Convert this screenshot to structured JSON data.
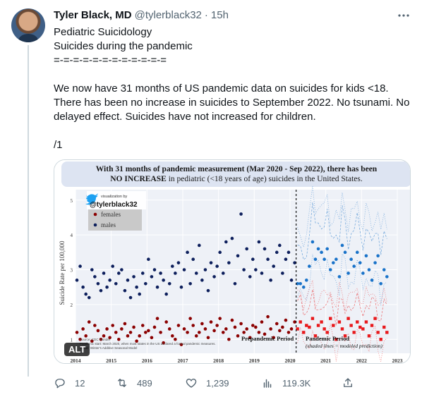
{
  "tweet": {
    "author_name": "Tyler Black, MD",
    "handle": "@tylerblack32",
    "separator": "·",
    "time": "15h",
    "more_icon": "ellipsis-icon",
    "lines": [
      "Pediatric Suicidology",
      "Suicides during the pandemic",
      "=-=-=-=-=-=-=-=-=-=-=-=",
      "",
      "We now have 31 months of US pandemic data on suicides for kids <18. There has been no increase in suicides to September 2022. No tsunami. No delayed effect. Suicides have not increased for children.",
      "",
      "/1"
    ]
  },
  "media": {
    "alt_badge": "ALT",
    "banner_line1": "With 31 months of pandemic measurement (Mar 2020 - Sep 2022), there has been",
    "banner_line2_bold": "NO INCREASE",
    "banner_line2_rest": " in pediatric (<18 years of age) suicides in the United States.",
    "viz_label": "visualization by",
    "viz_handle": "@tylerblack32",
    "prepandemic_label": "Prepandemic Period",
    "pandemic_label": "Pandemic Period",
    "pandemic_sublabel": "(shaded lines = modeled prediction)",
    "source_lines": [
      "Source: CDC Wonder",
      "Pandemic start: March 2020, when most states in the US declared a formal pandemic measures.",
      "Model: Winter's Additive Seasonal Model"
    ]
  },
  "chart_data": {
    "type": "scatter",
    "title": "With 31 months of pandemic measurement (Mar 2020 - Sep 2022), there has been NO INCREASE in pediatric (<18 years of age) suicides in the United States.",
    "xlabel": "",
    "ylabel": "Suicide Rate per 100,000",
    "x_ticks": [
      "2014",
      "2015",
      "2016",
      "2017",
      "2018",
      "2019",
      "2020",
      "2021",
      "2022",
      "2023"
    ],
    "y_ticks": [
      1,
      2,
      3,
      4,
      5
    ],
    "ylim": [
      0.6,
      5.3
    ],
    "xlim": [
      2014,
      2023
    ],
    "legend": [
      {
        "name": "females",
        "color": "#8b0000"
      },
      {
        "name": "males",
        "color": "#0d1f5c"
      }
    ],
    "legend_position": "top-left",
    "pandemic_start": 2020.17,
    "colors": {
      "female_prepandemic": "#8b0000",
      "male_prepandemic": "#0d1f5c",
      "female_pandemic": "#e8191c",
      "male_pandemic": "#1a73c9",
      "banner_bg": "#dde4f2",
      "plot_bg": "#eef1f7"
    },
    "series": [
      {
        "name": "females",
        "x": [
          2014.04,
          2014.13,
          2014.21,
          2014.29,
          2014.38,
          2014.46,
          2014.54,
          2014.63,
          2014.71,
          2014.79,
          2014.88,
          2014.96,
          2015.04,
          2015.13,
          2015.21,
          2015.29,
          2015.38,
          2015.46,
          2015.54,
          2015.63,
          2015.71,
          2015.79,
          2015.88,
          2015.96,
          2016.04,
          2016.13,
          2016.21,
          2016.29,
          2016.38,
          2016.46,
          2016.54,
          2016.63,
          2016.71,
          2016.79,
          2016.88,
          2016.96,
          2017.04,
          2017.13,
          2017.21,
          2017.29,
          2017.38,
          2017.46,
          2017.54,
          2017.63,
          2017.71,
          2017.79,
          2017.88,
          2017.96,
          2018.04,
          2018.13,
          2018.21,
          2018.29,
          2018.38,
          2018.46,
          2018.54,
          2018.63,
          2018.71,
          2018.79,
          2018.88,
          2018.96,
          2019.04,
          2019.13,
          2019.21,
          2019.29,
          2019.38,
          2019.46,
          2019.54,
          2019.63,
          2019.71,
          2019.79,
          2019.88,
          2019.96,
          2020.04,
          2020.13
        ],
        "values": [
          1.2,
          1.0,
          1.3,
          1.1,
          1.5,
          0.95,
          1.4,
          1.25,
          1.0,
          1.1,
          1.3,
          1.05,
          1.4,
          1.2,
          1.0,
          1.3,
          1.45,
          1.1,
          1.2,
          1.35,
          0.95,
          1.1,
          1.4,
          1.2,
          1.25,
          1.05,
          1.35,
          1.6,
          1.2,
          0.9,
          1.5,
          1.3,
          1.1,
          1.0,
          1.4,
          0.85,
          1.3,
          1.2,
          1.6,
          1.4,
          1.1,
          1.2,
          1.45,
          1.3,
          1.05,
          1.5,
          1.25,
          1.4,
          1.6,
          1.2,
          1.3,
          1.0,
          1.55,
          1.35,
          1.1,
          1.45,
          1.2,
          1.3,
          1.05,
          1.4,
          1.35,
          1.2,
          1.5,
          1.15,
          1.65,
          1.3,
          1.05,
          1.45,
          1.25,
          1.35,
          1.55,
          1.2,
          1.3,
          1.5
        ]
      },
      {
        "name": "males",
        "x": [
          2014.04,
          2014.13,
          2014.21,
          2014.29,
          2014.38,
          2014.46,
          2014.54,
          2014.63,
          2014.71,
          2014.79,
          2014.88,
          2014.96,
          2015.04,
          2015.13,
          2015.21,
          2015.29,
          2015.38,
          2015.46,
          2015.54,
          2015.63,
          2015.71,
          2015.79,
          2015.88,
          2015.96,
          2016.04,
          2016.13,
          2016.21,
          2016.29,
          2016.38,
          2016.46,
          2016.54,
          2016.63,
          2016.71,
          2016.79,
          2016.88,
          2016.96,
          2017.04,
          2017.13,
          2017.21,
          2017.29,
          2017.38,
          2017.46,
          2017.54,
          2017.63,
          2017.71,
          2017.79,
          2017.88,
          2017.96,
          2018.04,
          2018.13,
          2018.21,
          2018.29,
          2018.38,
          2018.46,
          2018.54,
          2018.63,
          2018.71,
          2018.79,
          2018.88,
          2018.96,
          2019.04,
          2019.13,
          2019.21,
          2019.29,
          2019.38,
          2019.46,
          2019.54,
          2019.63,
          2019.71,
          2019.79,
          2019.88,
          2019.96,
          2020.04,
          2020.13
        ],
        "values": [
          2.7,
          3.1,
          2.5,
          2.3,
          2.2,
          3.0,
          2.8,
          2.6,
          2.4,
          2.9,
          2.5,
          2.7,
          3.1,
          2.6,
          2.9,
          3.0,
          2.4,
          2.7,
          2.2,
          2.8,
          2.5,
          2.3,
          2.9,
          2.6,
          3.3,
          2.8,
          3.0,
          2.5,
          2.9,
          2.7,
          2.3,
          2.6,
          3.1,
          2.9,
          3.2,
          2.5,
          3.0,
          3.5,
          2.6,
          3.3,
          2.9,
          3.7,
          2.7,
          3.0,
          2.4,
          3.2,
          2.8,
          3.1,
          3.5,
          2.9,
          3.8,
          3.2,
          3.9,
          2.6,
          3.4,
          4.6,
          3.0,
          3.6,
          2.8,
          3.3,
          3.0,
          3.8,
          2.9,
          3.6,
          3.3,
          2.7,
          3.1,
          3.5,
          3.7,
          2.9,
          3.3,
          3.5,
          2.7,
          3.2
        ]
      },
      {
        "name": "females (pandemic)",
        "x": [
          2020.21,
          2020.29,
          2020.38,
          2020.46,
          2020.54,
          2020.63,
          2020.71,
          2020.79,
          2020.88,
          2020.96,
          2021.04,
          2021.13,
          2021.21,
          2021.29,
          2021.38,
          2021.46,
          2021.54,
          2021.63,
          2021.71,
          2021.79,
          2021.88,
          2021.96,
          2022.04,
          2022.13,
          2022.21,
          2022.29,
          2022.38,
          2022.46,
          2022.54,
          2022.63,
          2022.71
        ],
        "values": [
          1.3,
          1.5,
          1.2,
          1.4,
          1.35,
          1.6,
          1.1,
          1.4,
          1.5,
          1.3,
          1.2,
          1.6,
          1.4,
          1.0,
          1.5,
          1.3,
          1.1,
          1.6,
          1.4,
          1.2,
          1.5,
          1.35,
          1.3,
          1.5,
          1.1,
          1.4,
          1.6,
          1.2,
          1.0,
          1.35,
          1.2
        ]
      },
      {
        "name": "males (pandemic)",
        "x": [
          2020.21,
          2020.29,
          2020.38,
          2020.46,
          2020.54,
          2020.63,
          2020.71,
          2020.79,
          2020.88,
          2020.96,
          2021.04,
          2021.13,
          2021.21,
          2021.29,
          2021.38,
          2021.46,
          2021.54,
          2021.63,
          2021.71,
          2021.79,
          2021.88,
          2021.96,
          2022.04,
          2022.13,
          2022.21,
          2022.29,
          2022.38,
          2022.46,
          2022.54,
          2022.63,
          2022.71
        ],
        "values": [
          2.6,
          2.6,
          2.5,
          2.7,
          3.1,
          3.8,
          3.3,
          3.6,
          3.5,
          3.3,
          3.6,
          3.0,
          3.2,
          3.3,
          2.8,
          3.7,
          3.5,
          2.9,
          3.3,
          3.1,
          3.5,
          3.2,
          2.9,
          3.4,
          3.0,
          2.7,
          3.2,
          3.4,
          2.6,
          3.0,
          2.8
        ]
      }
    ],
    "modeled_predictions": true
  },
  "actions": {
    "reply_count": "12",
    "retweet_count": "489",
    "like_count": "1,239",
    "views_count": "119.3K",
    "reply_icon": "reply-icon",
    "retweet_icon": "retweet-icon",
    "like_icon": "heart-icon",
    "views_icon": "views-icon",
    "share_icon": "share-icon"
  }
}
